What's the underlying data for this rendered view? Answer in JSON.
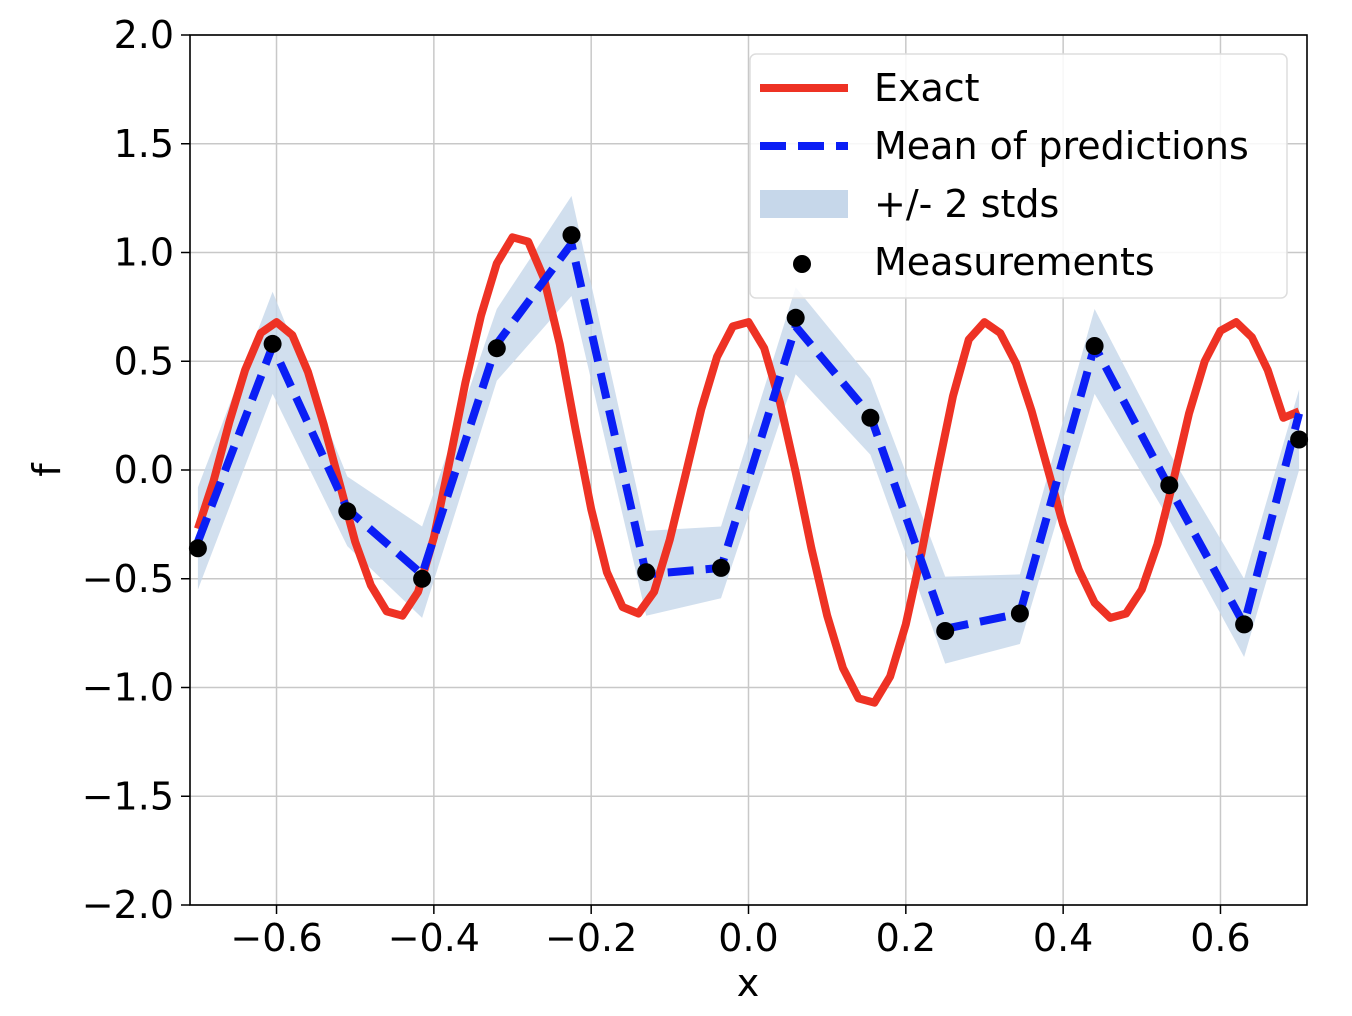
{
  "chart_data": {
    "type": "line",
    "xlabel": "x",
    "ylabel": "f",
    "xlim": [
      -0.71,
      0.71
    ],
    "ylim": [
      -2.0,
      2.0
    ],
    "xticks": [
      -0.6,
      -0.4,
      -0.2,
      0.0,
      0.2,
      0.4,
      0.6
    ],
    "xtick_labels": [
      "−0.6",
      "−0.4",
      "−0.2",
      "0.0",
      "0.2",
      "0.4",
      "0.6"
    ],
    "yticks": [
      2.0,
      1.5,
      1.0,
      0.5,
      0.0,
      -0.5,
      -1.0,
      -1.5,
      -2.0
    ],
    "ytick_labels": [
      "2.0",
      "1.5",
      "1.0",
      "0.5",
      "0.0",
      "−0.5",
      "−1.0",
      "−1.5",
      "−2.0"
    ],
    "grid": true,
    "legend_position": "top-right",
    "legend": {
      "exact": "Exact",
      "mean": "Mean of predictions",
      "band": "+/- 2 stds",
      "measurements": "Measurements"
    },
    "colors": {
      "exact": "#ee3224",
      "mean": "#0a1ef5",
      "band": "#c6d7ea",
      "measurements": "#000000",
      "grid": "#c8c8c8"
    },
    "exact_curve": {
      "x": [
        -0.7,
        -0.68,
        -0.66,
        -0.64,
        -0.62,
        -0.6,
        -0.58,
        -0.56,
        -0.54,
        -0.52,
        -0.5,
        -0.48,
        -0.46,
        -0.44,
        -0.42,
        -0.4,
        -0.38,
        -0.36,
        -0.34,
        -0.32,
        -0.3,
        -0.28,
        -0.26,
        -0.24,
        -0.22,
        -0.2,
        -0.18,
        -0.16,
        -0.14,
        -0.12,
        -0.1,
        -0.08,
        -0.06,
        -0.04,
        -0.02,
        0.0,
        0.02,
        0.04,
        0.06,
        0.08,
        0.1,
        0.12,
        0.14,
        0.16,
        0.18,
        0.2,
        0.22,
        0.24,
        0.26,
        0.28,
        0.3,
        0.32,
        0.34,
        0.36,
        0.38,
        0.4,
        0.42,
        0.44,
        0.46,
        0.48,
        0.5,
        0.52,
        0.54,
        0.56,
        0.58,
        0.6,
        0.62,
        0.64,
        0.66,
        0.68,
        0.7
      ],
      "y": [
        -0.27,
        -0.05,
        0.22,
        0.46,
        0.63,
        0.68,
        0.62,
        0.45,
        0.21,
        -0.06,
        -0.33,
        -0.53,
        -0.65,
        -0.67,
        -0.56,
        -0.31,
        0.04,
        0.4,
        0.71,
        0.95,
        1.07,
        1.05,
        0.88,
        0.58,
        0.19,
        -0.18,
        -0.47,
        -0.63,
        -0.66,
        -0.56,
        -0.32,
        -0.02,
        0.28,
        0.52,
        0.66,
        0.68,
        0.56,
        0.31,
        -0.01,
        -0.36,
        -0.67,
        -0.91,
        -1.05,
        -1.07,
        -0.95,
        -0.71,
        -0.38,
        -0.01,
        0.34,
        0.6,
        0.68,
        0.63,
        0.49,
        0.27,
        0.01,
        -0.25,
        -0.46,
        -0.61,
        -0.68,
        -0.66,
        -0.55,
        -0.34,
        -0.05,
        0.26,
        0.5,
        0.64,
        0.68,
        0.61,
        0.46,
        0.24,
        0.27
      ],
      "note": ""
    },
    "measurements": {
      "x": [
        -0.7,
        -0.605,
        -0.51,
        -0.415,
        -0.32,
        -0.225,
        -0.13,
        -0.035,
        0.06,
        0.155,
        0.25,
        0.345,
        0.44,
        0.535,
        0.63,
        0.7
      ],
      "y": [
        -0.36,
        0.58,
        -0.19,
        -0.5,
        0.56,
        1.08,
        -0.47,
        -0.45,
        0.7,
        0.24,
        -0.74,
        -0.66,
        0.57,
        -0.07,
        -0.71,
        0.14
      ]
    },
    "mean_predictions": {
      "x": [
        -0.7,
        -0.605,
        -0.51,
        -0.415,
        -0.32,
        -0.225,
        -0.13,
        -0.035,
        0.06,
        0.155,
        0.25,
        0.345,
        0.44,
        0.535,
        0.63,
        0.7
      ],
      "y": [
        -0.33,
        0.57,
        -0.18,
        -0.48,
        0.58,
        1.04,
        -0.48,
        -0.45,
        0.66,
        0.25,
        -0.73,
        -0.66,
        0.57,
        -0.08,
        -0.71,
        0.26
      ]
    },
    "band": {
      "x": [
        -0.7,
        -0.605,
        -0.51,
        -0.415,
        -0.32,
        -0.225,
        -0.13,
        -0.035,
        0.06,
        0.155,
        0.25,
        0.345,
        0.44,
        0.535,
        0.63,
        0.7
      ],
      "lower": [
        -0.55,
        0.35,
        -0.35,
        -0.68,
        0.41,
        0.8,
        -0.67,
        -0.59,
        0.44,
        0.07,
        -0.89,
        -0.8,
        0.35,
        -0.23,
        -0.86,
        0.0
      ],
      "upper": [
        -0.08,
        0.82,
        -0.03,
        -0.26,
        0.74,
        1.26,
        -0.28,
        -0.26,
        0.84,
        0.42,
        -0.49,
        -0.48,
        0.74,
        0.08,
        -0.5,
        0.37
      ]
    }
  }
}
